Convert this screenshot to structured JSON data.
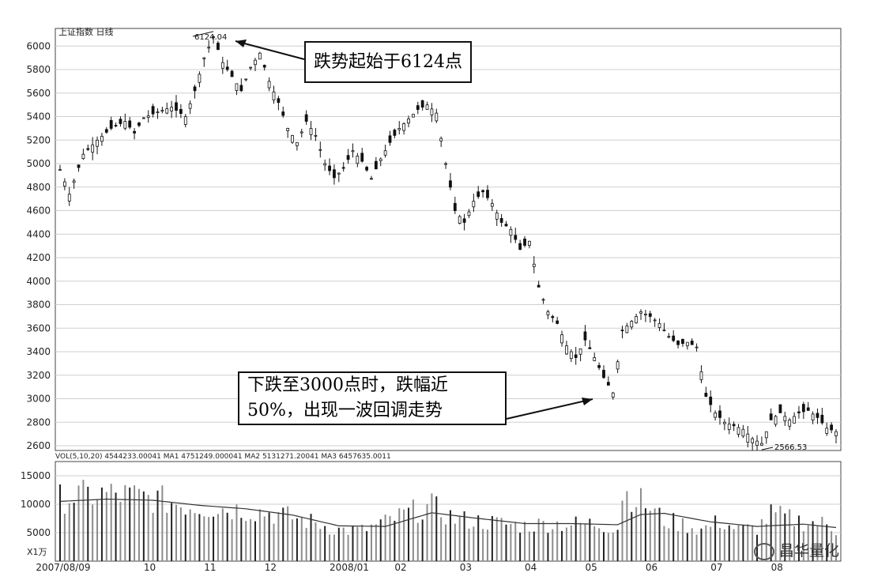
{
  "chart_data": [
    {
      "type": "candlestick",
      "title": "上证指数 日线",
      "y_ticks": [
        2600,
        2800,
        3000,
        3200,
        3400,
        3600,
        3800,
        4000,
        4200,
        4400,
        4600,
        4800,
        5000,
        5200,
        5400,
        5600,
        5800,
        6000
      ],
      "y_tick_labels": [
        "2600",
        "2800",
        "3000",
        "3200",
        "3400",
        "3600",
        "3800",
        "4000",
        "4200",
        "4400",
        "4600",
        "4800",
        "5000",
        "5200",
        "5400",
        "5600",
        "5800",
        "6000"
      ],
      "ylim": [
        2560,
        6150
      ],
      "x_labels": [
        "2007/08/09",
        "10",
        "11",
        "12",
        "2008/01",
        "02",
        "03",
        "04",
        "05",
        "06",
        "07",
        "08"
      ],
      "grid": true,
      "high_label": "6124.04",
      "low_label": "2566.53",
      "close_path": [
        [
          0,
          4950
        ],
        [
          2,
          4740
        ],
        [
          5,
          5080
        ],
        [
          8,
          5200
        ],
        [
          11,
          5300
        ],
        [
          14,
          5360
        ],
        [
          16,
          5260
        ],
        [
          18,
          5390
        ],
        [
          21,
          5440
        ],
        [
          24,
          5480
        ],
        [
          27,
          5400
        ],
        [
          29,
          5620
        ],
        [
          31,
          5900
        ],
        [
          33,
          6080
        ],
        [
          35,
          5860
        ],
        [
          37,
          5740
        ],
        [
          39,
          5620
        ],
        [
          41,
          5820
        ],
        [
          43,
          5940
        ],
        [
          45,
          5700
        ],
        [
          47,
          5520
        ],
        [
          49,
          5300
        ],
        [
          51,
          5180
        ],
        [
          53,
          5360
        ],
        [
          55,
          5240
        ],
        [
          57,
          5000
        ],
        [
          59,
          4880
        ],
        [
          61,
          4960
        ],
        [
          63,
          5110
        ],
        [
          65,
          5020
        ],
        [
          67,
          4870
        ],
        [
          69,
          5040
        ],
        [
          71,
          5180
        ],
        [
          73,
          5300
        ],
        [
          75,
          5380
        ],
        [
          77,
          5460
        ],
        [
          79,
          5500
        ],
        [
          81,
          5430
        ],
        [
          83,
          5000
        ],
        [
          85,
          4600
        ],
        [
          87,
          4500
        ],
        [
          89,
          4680
        ],
        [
          91,
          4760
        ],
        [
          93,
          4660
        ],
        [
          95,
          4500
        ],
        [
          97,
          4440
        ],
        [
          99,
          4270
        ],
        [
          101,
          4340
        ],
        [
          103,
          3950
        ],
        [
          105,
          3740
        ],
        [
          107,
          3640
        ],
        [
          109,
          3450
        ],
        [
          111,
          3350
        ],
        [
          113,
          3500
        ],
        [
          115,
          3350
        ],
        [
          117,
          3180
        ],
        [
          119,
          3050
        ],
        [
          121,
          3580
        ],
        [
          123,
          3660
        ],
        [
          125,
          3740
        ],
        [
          127,
          3700
        ],
        [
          129,
          3640
        ],
        [
          131,
          3530
        ],
        [
          133,
          3460
        ],
        [
          135,
          3480
        ],
        [
          137,
          3440
        ],
        [
          139,
          3020
        ],
        [
          141,
          2880
        ],
        [
          143,
          2800
        ],
        [
          145,
          2770
        ],
        [
          147,
          2740
        ],
        [
          149,
          2660
        ],
        [
          151,
          2620
        ],
        [
          153,
          2820
        ],
        [
          155,
          2880
        ],
        [
          157,
          2820
        ],
        [
          159,
          2880
        ],
        [
          161,
          2900
        ],
        [
          163,
          2840
        ],
        [
          165,
          2750
        ],
        [
          167,
          2720
        ]
      ],
      "volume": {
        "y_ticks": [
          5000,
          10000,
          15000
        ],
        "y_tick_labels": [
          "5000",
          "10000",
          "15000"
        ],
        "ylim": [
          0,
          17500
        ],
        "unit_label": "X1万",
        "header": "VOL(5,10,20) 4544233.00041 MA1 4751249.000041 MA2 5131271.20041 MA3 6457635.0011",
        "values_path": [
          [
            0,
            11000
          ],
          [
            5,
            11500
          ],
          [
            10,
            11800
          ],
          [
            15,
            11500
          ],
          [
            20,
            11000
          ],
          [
            25,
            10200
          ],
          [
            30,
            9500
          ],
          [
            35,
            9300
          ],
          [
            40,
            9000
          ],
          [
            45,
            8500
          ],
          [
            50,
            7700
          ],
          [
            55,
            6700
          ],
          [
            60,
            5500
          ],
          [
            65,
            5400
          ],
          [
            70,
            6800
          ],
          [
            75,
            8500
          ],
          [
            80,
            9600
          ],
          [
            85,
            7400
          ],
          [
            90,
            7000
          ],
          [
            95,
            6600
          ],
          [
            100,
            6200
          ],
          [
            105,
            6600
          ],
          [
            110,
            6500
          ],
          [
            115,
            6600
          ],
          [
            120,
            5800
          ],
          [
            121,
            12000
          ],
          [
            123,
            11500
          ],
          [
            126,
            10000
          ],
          [
            130,
            7200
          ],
          [
            135,
            6300
          ],
          [
            138,
            5500
          ],
          [
            142,
            7000
          ],
          [
            146,
            5500
          ],
          [
            150,
            5800
          ],
          [
            153,
            8200
          ],
          [
            156,
            7700
          ],
          [
            160,
            6900
          ],
          [
            164,
            6600
          ],
          [
            167,
            5500
          ]
        ],
        "ma_path": [
          [
            0,
            10500
          ],
          [
            10,
            10900
          ],
          [
            20,
            10700
          ],
          [
            30,
            9800
          ],
          [
            40,
            9200
          ],
          [
            50,
            8100
          ],
          [
            60,
            6200
          ],
          [
            70,
            6100
          ],
          [
            80,
            8500
          ],
          [
            90,
            7500
          ],
          [
            100,
            6600
          ],
          [
            110,
            6600
          ],
          [
            120,
            6400
          ],
          [
            125,
            8200
          ],
          [
            130,
            8400
          ],
          [
            140,
            6900
          ],
          [
            150,
            6100
          ],
          [
            160,
            6500
          ],
          [
            167,
            5900
          ]
        ]
      }
    }
  ],
  "annotations": {
    "peak": "跌势起始于6124点",
    "trough_line1": "下跌至3000点时，跌幅近",
    "trough_line2": "50%，出现一波回调走势"
  },
  "watermark": "昌华量化",
  "colors": {
    "candle": "#111111",
    "grid": "#cfcfcf",
    "volume_bar": "#8c8c8c",
    "ma_line": "#333333"
  }
}
